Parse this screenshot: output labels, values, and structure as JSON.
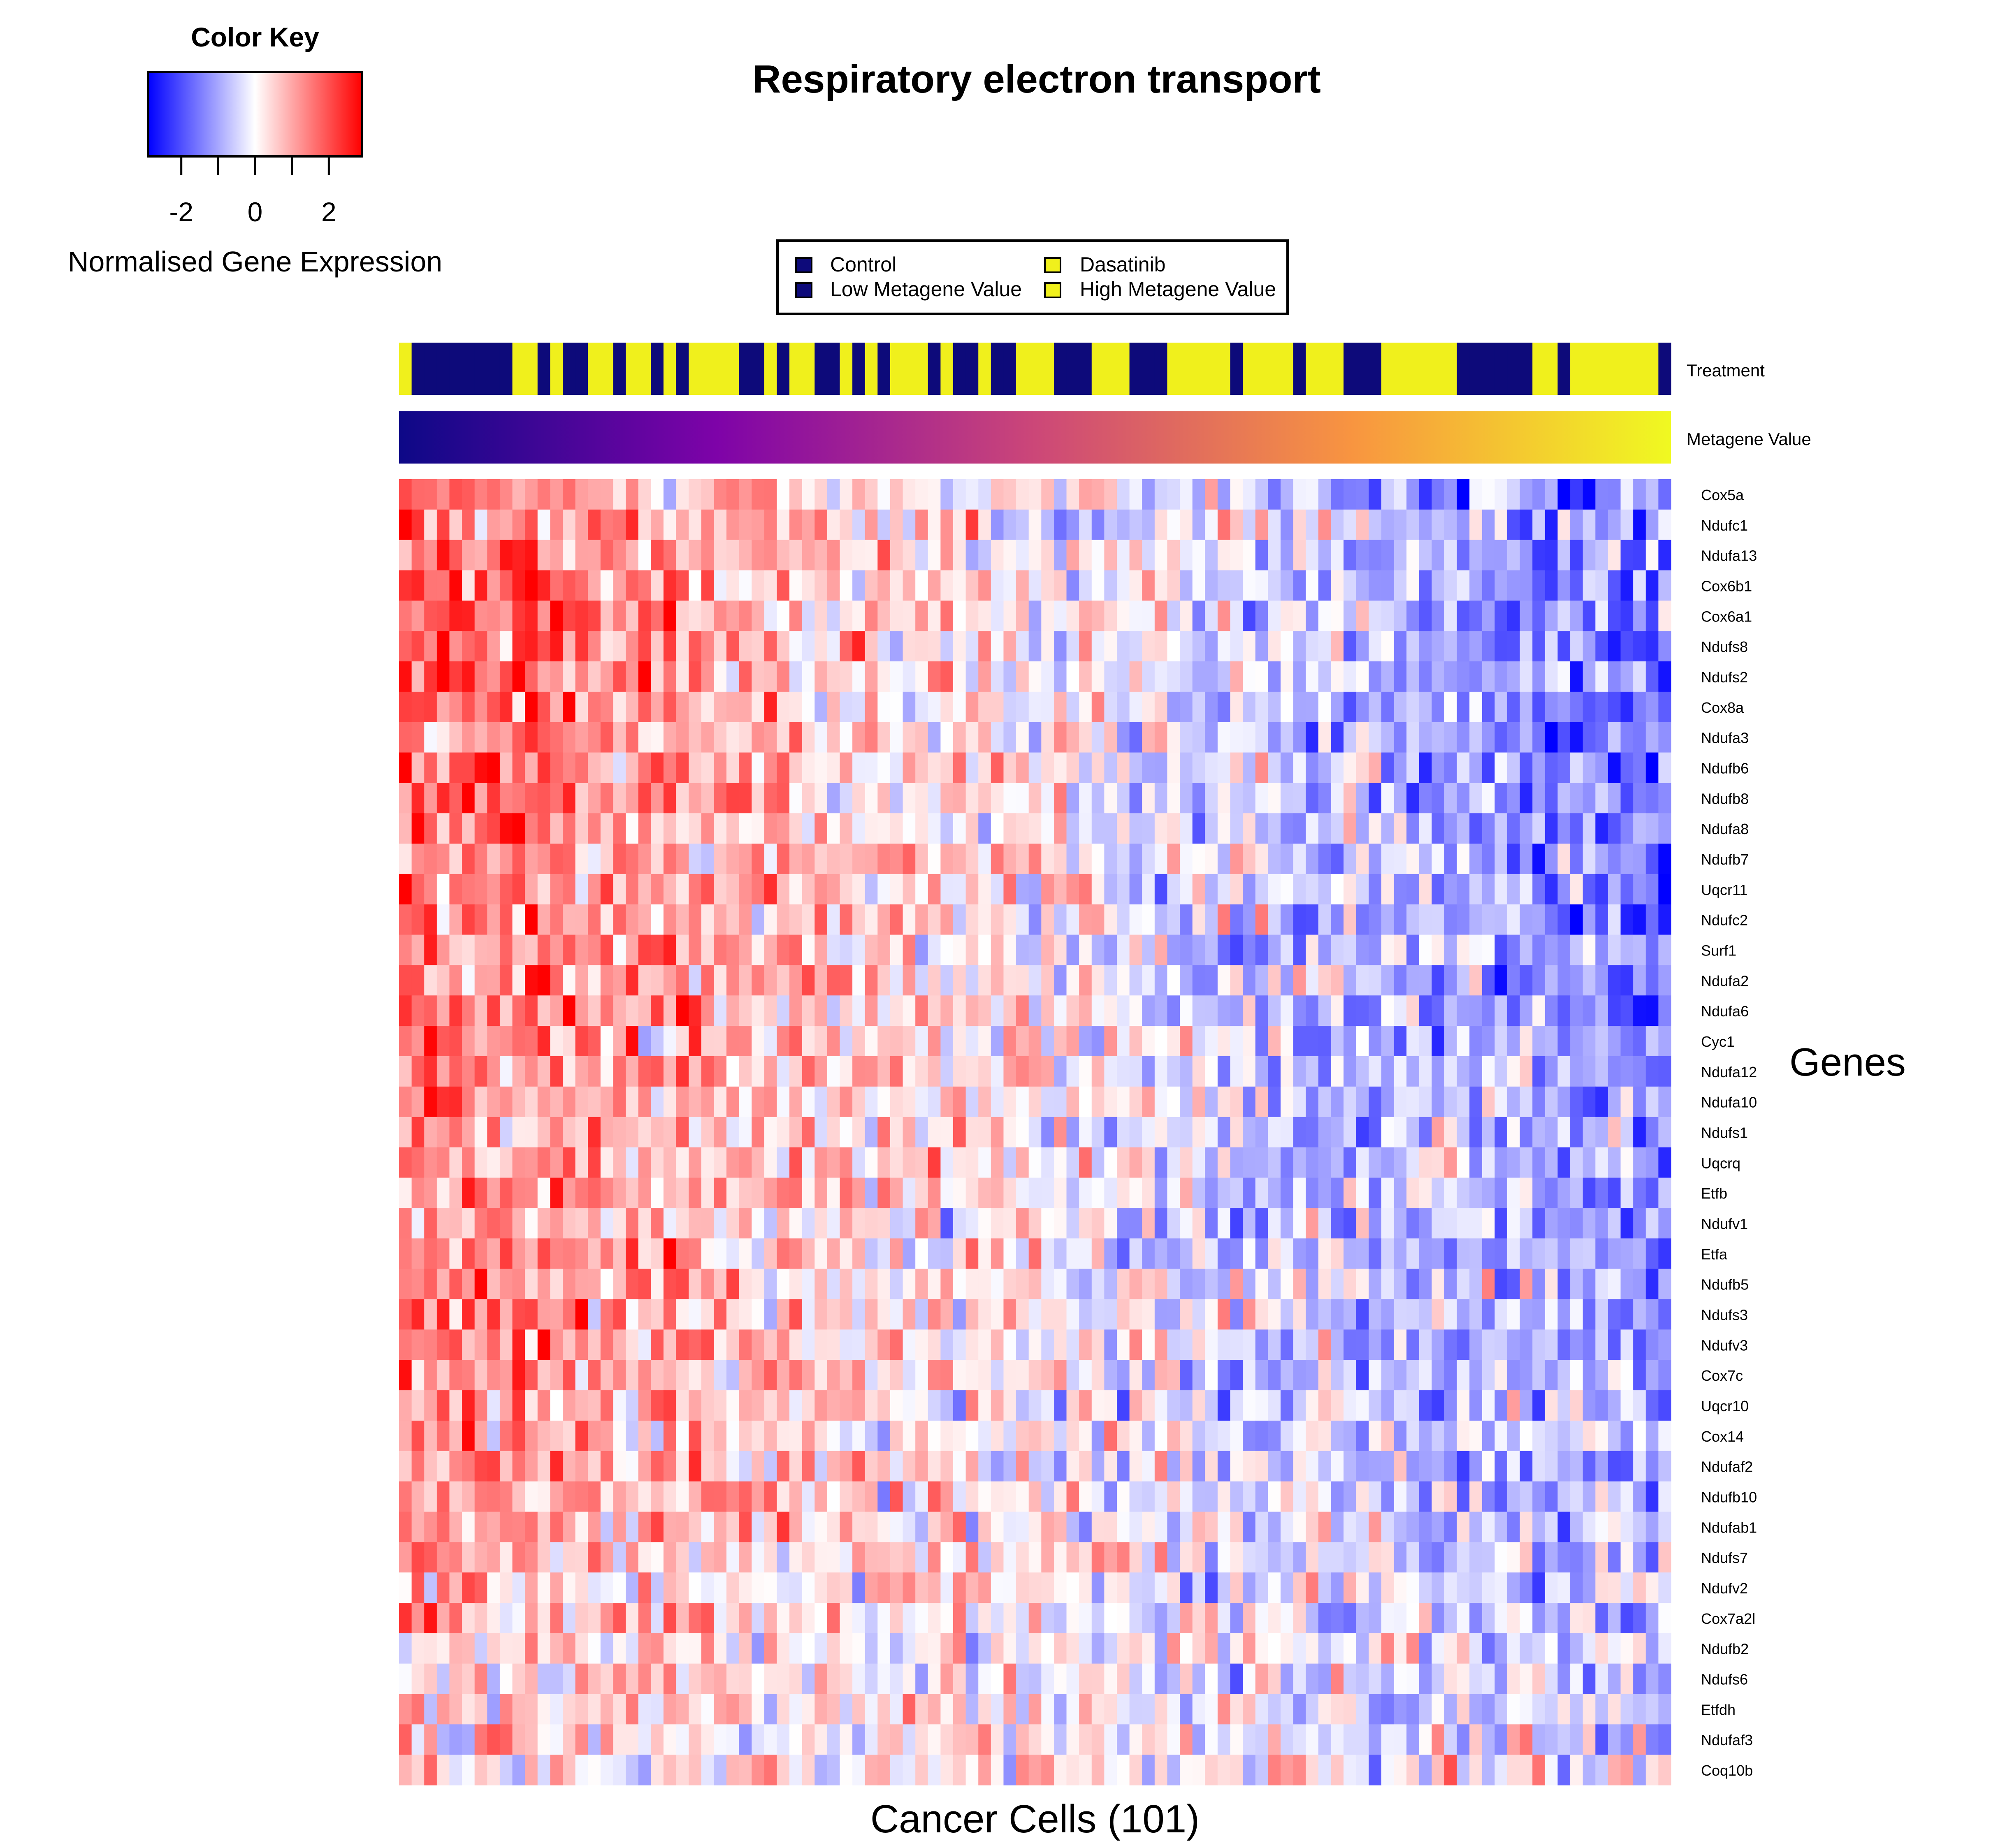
{
  "chart_data": {
    "type": "heatmap",
    "title": "Respiratory electron transport",
    "xlabel": "Cancer Cells (101)",
    "ylabel": "Genes",
    "n_columns": 101,
    "color_key": {
      "title": "Color Key",
      "label": "Normalised Gene Expression",
      "ticks": [
        -2,
        0,
        2
      ],
      "range": [
        -2.9,
        2.9
      ],
      "low_color": "#0000ff",
      "mid_color": "#ffffff",
      "high_color": "#ff0000"
    },
    "legend": {
      "placement": "top-center",
      "entries": [
        {
          "label": "Control",
          "color": "#0d0a7a"
        },
        {
          "label": "Low Metagene Value",
          "color": "#0d0a7a"
        },
        {
          "label": "Dasatinib",
          "color": "#f0f01c"
        },
        {
          "label": "High Metagene Value",
          "color": "#f0f01c"
        }
      ]
    },
    "annotation_tracks": [
      {
        "label": "Treatment",
        "categories": {
          "0": "Control",
          "1": "Dasatinib"
        },
        "colors": {
          "0": "#0d0a7a",
          "1": "#f0f01c"
        },
        "values": [
          1,
          0,
          0,
          0,
          0,
          0,
          0,
          0,
          0,
          1,
          1,
          0,
          1,
          0,
          0,
          1,
          1,
          0,
          1,
          1,
          0,
          1,
          0,
          1,
          1,
          1,
          1,
          0,
          0,
          1,
          0,
          1,
          1,
          0,
          0,
          1,
          0,
          1,
          0,
          1,
          1,
          1,
          0,
          1,
          0,
          0,
          1,
          0,
          0,
          1,
          1,
          1,
          0,
          0,
          0,
          1,
          1,
          1,
          0,
          0,
          0,
          1,
          1,
          1,
          1,
          1,
          0,
          1,
          1,
          1,
          1,
          0,
          1,
          1,
          1,
          0,
          0,
          0,
          1,
          1,
          1,
          1,
          1,
          1,
          0,
          0,
          0,
          0,
          0,
          0,
          1,
          1,
          0,
          1,
          1,
          1,
          1,
          1,
          1,
          1,
          0
        ]
      },
      {
        "label": "Metagene Value",
        "gradient": [
          "#0d0887",
          "#7e03a8",
          "#cc4778",
          "#f89540",
          "#f0f921"
        ]
      }
    ],
    "rows": [
      "Cox5a",
      "Ndufc1",
      "Ndufa13",
      "Cox6b1",
      "Cox6a1",
      "Ndufs8",
      "Ndufs2",
      "Cox8a",
      "Ndufa3",
      "Ndufb6",
      "Ndufb8",
      "Ndufa8",
      "Ndufb7",
      "Uqcr11",
      "Ndufc2",
      "Surf1",
      "Ndufa2",
      "Ndufa6",
      "Cyc1",
      "Ndufa12",
      "Ndufa10",
      "Ndufs1",
      "Uqcrq",
      "Etfb",
      "Ndufv1",
      "Etfa",
      "Ndufb5",
      "Ndufs3",
      "Ndufv3",
      "Cox7c",
      "Uqcr10",
      "Cox14",
      "Ndufaf2",
      "Ndufb10",
      "Ndufab1",
      "Ndufs7",
      "Ndufv2",
      "Cox7a2l",
      "Ndufb2",
      "Ndufs6",
      "Etfdh",
      "Ndufaf3",
      "Coq10b"
    ],
    "row_trend": [
      1.15,
      1.05,
      1.15,
      1.2,
      1.2,
      1.15,
      1.1,
      1.2,
      1.15,
      1.15,
      1.2,
      1.15,
      1.15,
      1.15,
      1.15,
      1.0,
      1.1,
      1.1,
      1.05,
      1.0,
      0.95,
      0.9,
      0.9,
      0.95,
      0.9,
      0.9,
      0.85,
      0.9,
      0.85,
      0.85,
      0.8,
      0.8,
      0.75,
      0.8,
      0.8,
      0.7,
      0.5,
      0.6,
      0.5,
      0.5,
      0.4,
      0.3,
      0.2
    ],
    "values_note": ""
  }
}
